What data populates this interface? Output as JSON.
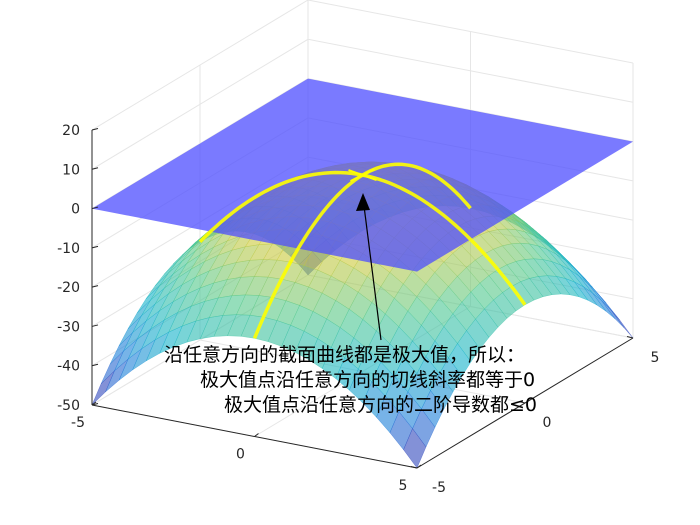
{
  "chart_data": {
    "type": "surface3d",
    "title": "",
    "xlabel": "",
    "ylabel": "",
    "zlabel": "",
    "xlim": [
      -5,
      5
    ],
    "ylim": [
      -5,
      5
    ],
    "zlim": [
      -50,
      20
    ],
    "x_ticks": [
      "-5",
      "0",
      "5"
    ],
    "y_ticks": [
      "-5",
      "0",
      "5"
    ],
    "z_ticks": [
      "-50",
      "-40",
      "-30",
      "-20",
      "-10",
      "0",
      "10",
      "20"
    ],
    "grid": true,
    "surface": {
      "function": "z = -(x^2 + y^2)",
      "colormap": "parula",
      "alpha": 0.6
    },
    "plane": {
      "z": 0,
      "color": "#4d4dff",
      "alpha": 0.75
    },
    "cross_sections": [
      {
        "direction": "x-axis",
        "color": "#ffff00"
      },
      {
        "direction": "y-axis",
        "color": "#ffff00"
      }
    ],
    "peak": {
      "x": 0,
      "y": 0,
      "z": 0,
      "marker": "x",
      "color": "#ffff00"
    },
    "annotation": {
      "lines": [
        "沿任意方向的截面曲线都是极大值，所以：",
        "极大值点沿任意方向的切线斜率都等于0",
        "极大值点沿任意方向的二阶导数都≤0"
      ]
    }
  }
}
